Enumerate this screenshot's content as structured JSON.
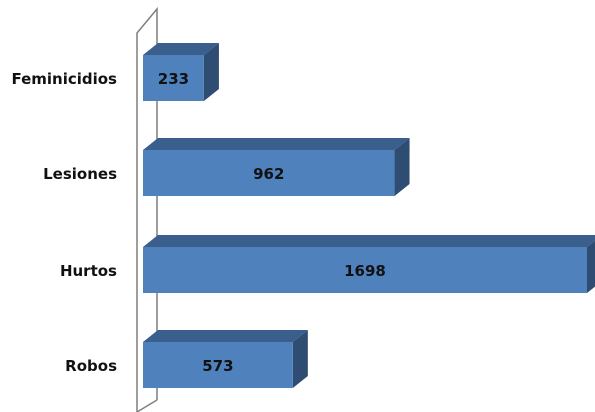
{
  "chart_data": {
    "type": "bar",
    "orientation": "horizontal",
    "style": "3d",
    "categories": [
      "Feminicidios",
      "Lesiones",
      "Hurtos",
      "Robos"
    ],
    "values": [
      233,
      962,
      1698,
      573
    ],
    "title": "",
    "xlabel": "",
    "ylabel": "",
    "xlim": [
      0,
      1698
    ],
    "grid": false,
    "legend": "none",
    "colors": {
      "bar_front": "#4F81BD",
      "bar_top": "#3A5F8C",
      "bar_side": "#2F4D73",
      "wall": "#7F7F7F"
    }
  }
}
